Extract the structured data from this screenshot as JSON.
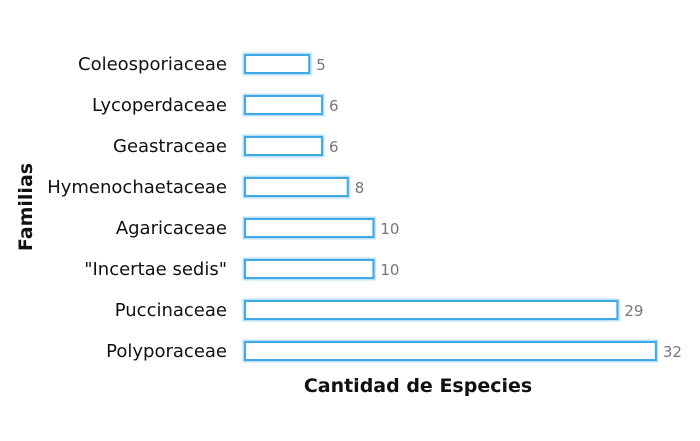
{
  "chart_data": {
    "type": "bar",
    "orientation": "horizontal",
    "categories": [
      "Coleosporiaceae",
      "Lycoperdaceae",
      "Geastraceae",
      "Hymenochaetaceae",
      "Agaricaceae",
      "\"Incertae sedis\"",
      "Puccinaceae",
      "Polyporaceae"
    ],
    "values": [
      5,
      6,
      6,
      8,
      10,
      10,
      29,
      32
    ],
    "title": "",
    "xlabel": "Cantidad de Especies",
    "ylabel": "Familias",
    "xlim": [
      0,
      32
    ],
    "grid": false,
    "data_labels": true,
    "bar_fill": "#ffffff",
    "bar_stroke": "#41a9e6"
  }
}
